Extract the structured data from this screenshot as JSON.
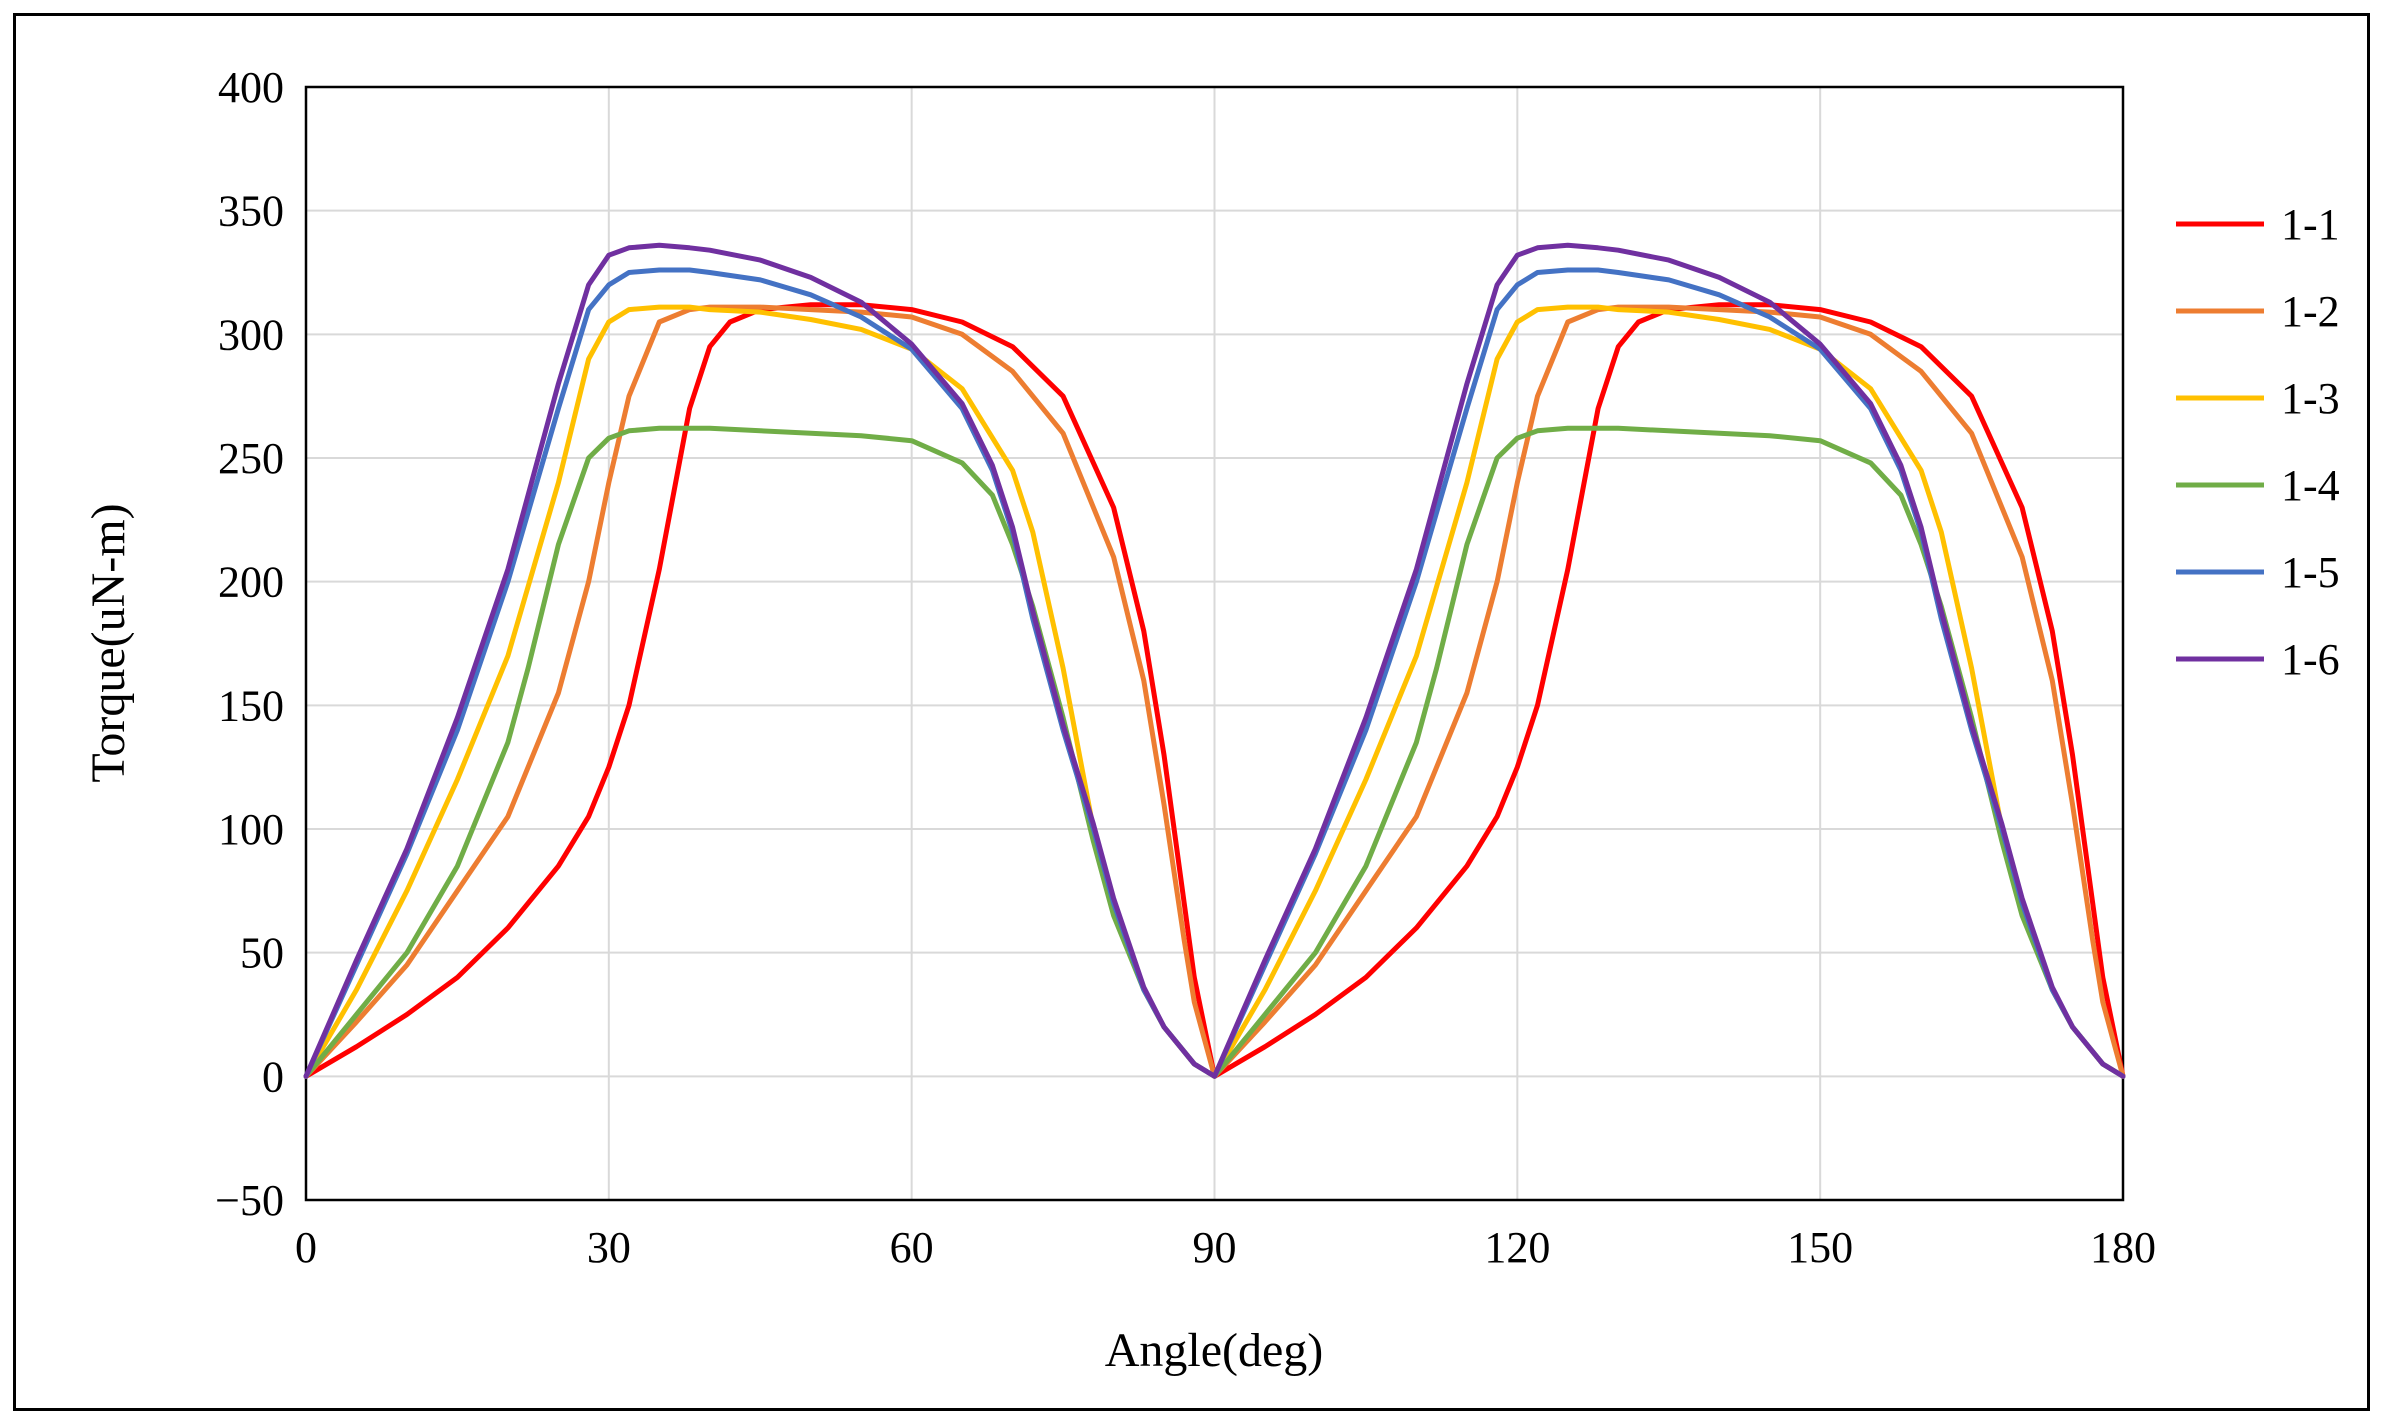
{
  "chart_data": {
    "type": "line",
    "title": "",
    "xlabel": "Angle(deg)",
    "ylabel": "Torque(uN-m)",
    "xlim": [
      0,
      180
    ],
    "ylim": [
      -50,
      400
    ],
    "xticks": [
      0,
      30,
      60,
      90,
      120,
      150,
      180
    ],
    "yticks": [
      -50,
      0,
      50,
      100,
      150,
      200,
      250,
      300,
      350,
      400
    ],
    "xtick_labels": [
      "0",
      "30",
      "60",
      "90",
      "120",
      "150",
      "180"
    ],
    "ytick_labels": [
      "−50",
      "0",
      "50",
      "100",
      "150",
      "200",
      "250",
      "300",
      "350",
      "400"
    ],
    "grid": true,
    "legend_position": "right",
    "series": [
      {
        "name": "1-1",
        "color": "#ff0000",
        "x": [
          0,
          5,
          10,
          15,
          20,
          25,
          28,
          30,
          32,
          35,
          38,
          40,
          42,
          45,
          50,
          55,
          60,
          65,
          70,
          75,
          80,
          83,
          85,
          87,
          88,
          90
        ],
        "y": [
          0,
          12,
          25,
          40,
          60,
          85,
          105,
          125,
          150,
          205,
          270,
          295,
          305,
          310,
          312,
          312,
          310,
          305,
          295,
          275,
          230,
          180,
          130,
          70,
          40,
          0
        ]
      },
      {
        "name": "1-2",
        "color": "#ed7d31",
        "x": [
          0,
          5,
          10,
          15,
          20,
          25,
          28,
          30,
          32,
          35,
          38,
          40,
          42,
          45,
          50,
          55,
          60,
          65,
          70,
          75,
          80,
          83,
          85,
          87,
          88,
          90
        ],
        "y": [
          0,
          22,
          45,
          75,
          105,
          155,
          200,
          240,
          275,
          305,
          310,
          311,
          311,
          311,
          310,
          309,
          307,
          300,
          285,
          260,
          210,
          160,
          110,
          55,
          30,
          0
        ]
      },
      {
        "name": "1-3",
        "color": "#ffc000",
        "x": [
          0,
          5,
          10,
          15,
          20,
          25,
          28,
          30,
          32,
          35,
          38,
          40,
          45,
          50,
          55,
          60,
          65,
          70,
          72,
          75,
          78,
          80,
          83,
          85,
          88,
          90
        ],
        "y": [
          0,
          35,
          75,
          120,
          170,
          240,
          290,
          305,
          310,
          311,
          311,
          310,
          309,
          306,
          302,
          294,
          278,
          245,
          220,
          165,
          100,
          70,
          35,
          20,
          5,
          0
        ]
      },
      {
        "name": "1-4",
        "color": "#70ad47",
        "x": [
          0,
          5,
          10,
          15,
          20,
          22,
          25,
          28,
          30,
          32,
          35,
          40,
          45,
          50,
          55,
          60,
          65,
          68,
          70,
          72,
          75,
          78,
          80,
          83,
          85,
          88,
          90
        ],
        "y": [
          0,
          25,
          50,
          85,
          135,
          165,
          215,
          250,
          258,
          261,
          262,
          262,
          261,
          260,
          259,
          257,
          248,
          235,
          215,
          190,
          145,
          95,
          65,
          35,
          20,
          5,
          0
        ]
      },
      {
        "name": "1-5",
        "color": "#4472c4",
        "x": [
          0,
          5,
          10,
          15,
          20,
          25,
          28,
          30,
          32,
          35,
          38,
          40,
          45,
          50,
          55,
          60,
          65,
          68,
          70,
          72,
          75,
          78,
          80,
          83,
          85,
          88,
          90
        ],
        "y": [
          0,
          45,
          90,
          140,
          200,
          270,
          310,
          320,
          325,
          326,
          326,
          325,
          322,
          316,
          307,
          294,
          270,
          245,
          220,
          185,
          140,
          100,
          70,
          35,
          20,
          5,
          0
        ]
      },
      {
        "name": "1-6",
        "color": "#7030a0",
        "x": [
          0,
          5,
          10,
          15,
          20,
          25,
          28,
          30,
          32,
          35,
          38,
          40,
          45,
          50,
          55,
          60,
          65,
          68,
          70,
          72,
          75,
          78,
          80,
          83,
          85,
          88,
          90
        ],
        "y": [
          0,
          47,
          92,
          145,
          205,
          280,
          320,
          332,
          335,
          336,
          335,
          334,
          330,
          323,
          313,
          296,
          272,
          247,
          222,
          188,
          142,
          102,
          72,
          36,
          20,
          5,
          0
        ]
      }
    ],
    "period_deg": 90
  }
}
